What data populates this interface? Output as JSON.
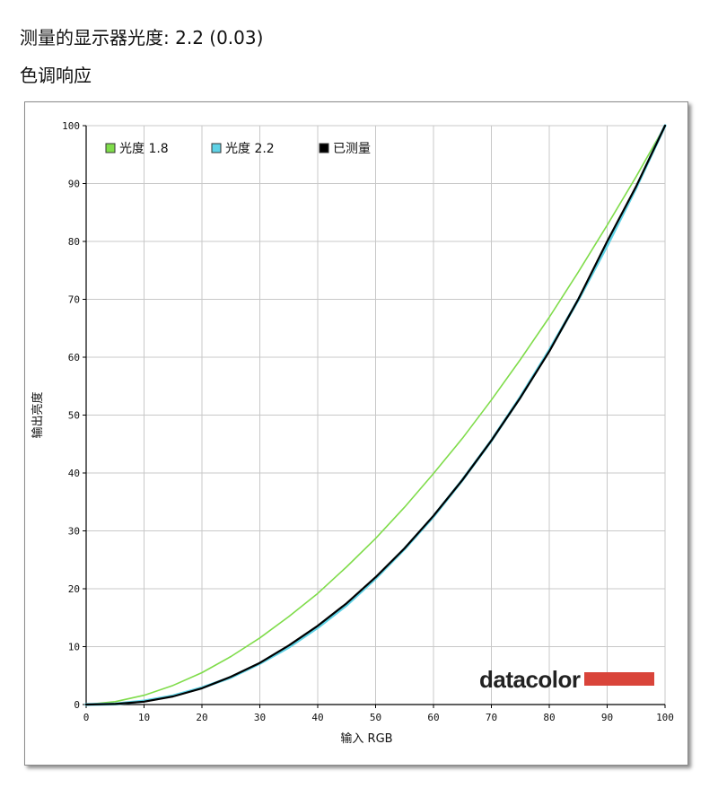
{
  "page": {
    "gamma_label": "测量的显示器光度:",
    "gamma_value": "2.2 (0.03)",
    "section_title": "色调响应"
  },
  "brand": {
    "name": "datacolor",
    "color": "#d9443a"
  },
  "chart_data": {
    "type": "line",
    "xlabel": "输入 RGB",
    "ylabel": "输出亮度",
    "xlim": [
      0,
      100
    ],
    "ylim": [
      0,
      100
    ],
    "xticks": [
      0,
      10,
      20,
      30,
      40,
      50,
      60,
      70,
      80,
      90,
      100
    ],
    "yticks": [
      0,
      10,
      20,
      30,
      40,
      50,
      60,
      70,
      80,
      90,
      100
    ],
    "grid": true,
    "legend_position": "top-left",
    "series": [
      {
        "name": "光度 1.8",
        "color": "#7fdc4a",
        "x": [
          0,
          5,
          10,
          15,
          20,
          25,
          30,
          35,
          40,
          45,
          50,
          55,
          60,
          65,
          70,
          75,
          80,
          85,
          90,
          95,
          100
        ],
        "y": [
          0,
          0.5,
          1.6,
          3.3,
          5.5,
          8.3,
          11.5,
          15.2,
          19.2,
          23.8,
          28.7,
          34.1,
          39.9,
          46.0,
          52.6,
          59.6,
          66.9,
          74.7,
          82.8,
          91.2,
          100
        ]
      },
      {
        "name": "光度 2.2",
        "color": "#5fd2e6",
        "x": [
          0,
          5,
          10,
          15,
          20,
          25,
          30,
          35,
          40,
          45,
          50,
          55,
          60,
          65,
          70,
          75,
          80,
          85,
          90,
          95,
          100
        ],
        "y": [
          0,
          0.1,
          0.6,
          1.5,
          2.9,
          4.7,
          7.1,
          9.9,
          13.3,
          17.2,
          21.8,
          26.9,
          32.5,
          38.8,
          45.6,
          53.1,
          61.2,
          69.9,
          79.3,
          89.3,
          100
        ]
      },
      {
        "name": "已测量",
        "color": "#000000",
        "x": [
          0,
          5,
          10,
          15,
          20,
          25,
          30,
          35,
          40,
          45,
          50,
          55,
          60,
          65,
          70,
          75,
          80,
          85,
          90,
          95,
          100
        ],
        "y": [
          0,
          0.1,
          0.5,
          1.4,
          2.8,
          4.8,
          7.2,
          10.2,
          13.6,
          17.5,
          22.0,
          27.0,
          32.6,
          38.8,
          45.6,
          53.0,
          61.0,
          70.0,
          80.0,
          89.5,
          100
        ]
      }
    ]
  }
}
